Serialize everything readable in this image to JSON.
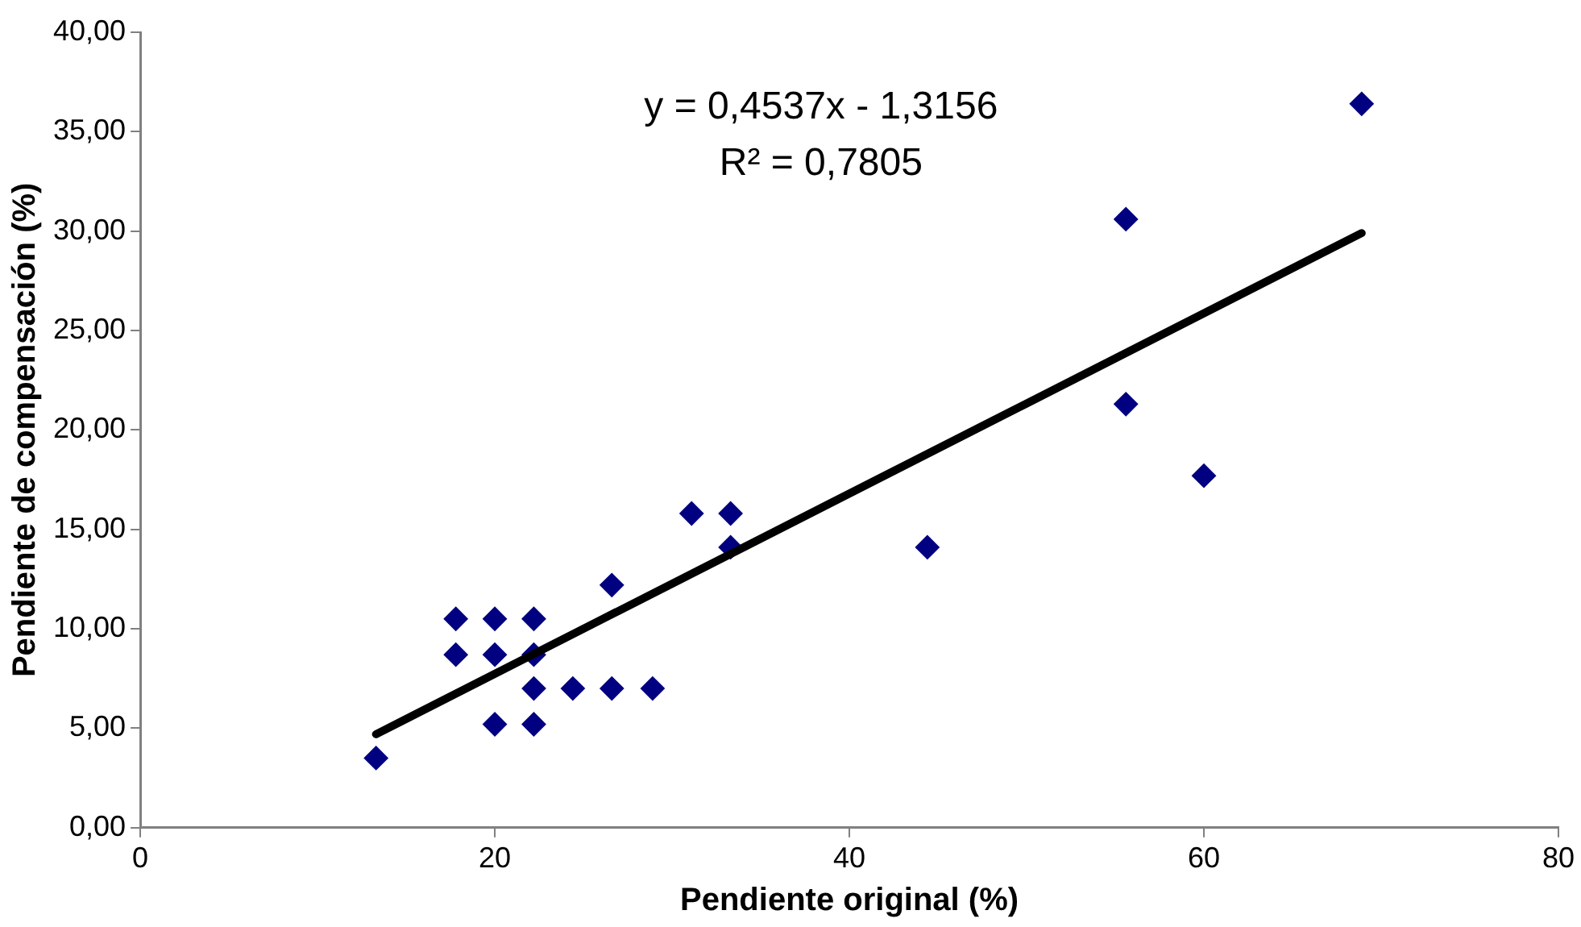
{
  "chart_data": {
    "type": "scatter",
    "xlabel": "Pendiente original (%)",
    "ylabel": "Pendiente de compensación (%)",
    "annotations": [
      "y = 0,4537x - 1,3156",
      "R² = 0,7805"
    ],
    "series": [
      {
        "color": "#000080",
        "marker": "diamond",
        "x": [
          13.3,
          17.8,
          17.8,
          20,
          20,
          20,
          22.2,
          22.2,
          22.2,
          22.2,
          24.4,
          26.6,
          26.6,
          28.9,
          31.1,
          33.3,
          33.3,
          44.4,
          55.6,
          55.6,
          60.0,
          68.9
        ],
        "values": [
          3.5,
          10.5,
          8.7,
          10.5,
          8.7,
          5.2,
          10.5,
          8.7,
          7.0,
          5.2,
          7.0,
          12.2,
          7.0,
          7.0,
          15.8,
          15.8,
          14.1,
          14.1,
          30.6,
          21.3,
          17.7,
          36.4
        ]
      },
      {
        "type": "line",
        "color": "#000000",
        "marker": "none",
        "line_style": "solid",
        "x": [
          13.3,
          68.9
        ],
        "values": [
          4.7,
          29.9
        ]
      }
    ],
    "xlim": [
      0,
      80
    ],
    "xticks": [
      0,
      20,
      40,
      60,
      80
    ],
    "ylim": [
      0,
      40
    ],
    "yticks": [
      {
        "value": 0,
        "label": "0,00"
      },
      {
        "value": 5,
        "label": "5,00"
      },
      {
        "value": 10,
        "label": "10,00"
      },
      {
        "value": 15,
        "label": "15,00"
      },
      {
        "value": 20,
        "label": "20,00"
      },
      {
        "value": 25,
        "label": "25,00"
      },
      {
        "value": 30,
        "label": "30,00"
      },
      {
        "value": 35,
        "label": "35,00"
      },
      {
        "value": 40,
        "label": "40,00"
      }
    ],
    "grid": false,
    "legend": false
  }
}
